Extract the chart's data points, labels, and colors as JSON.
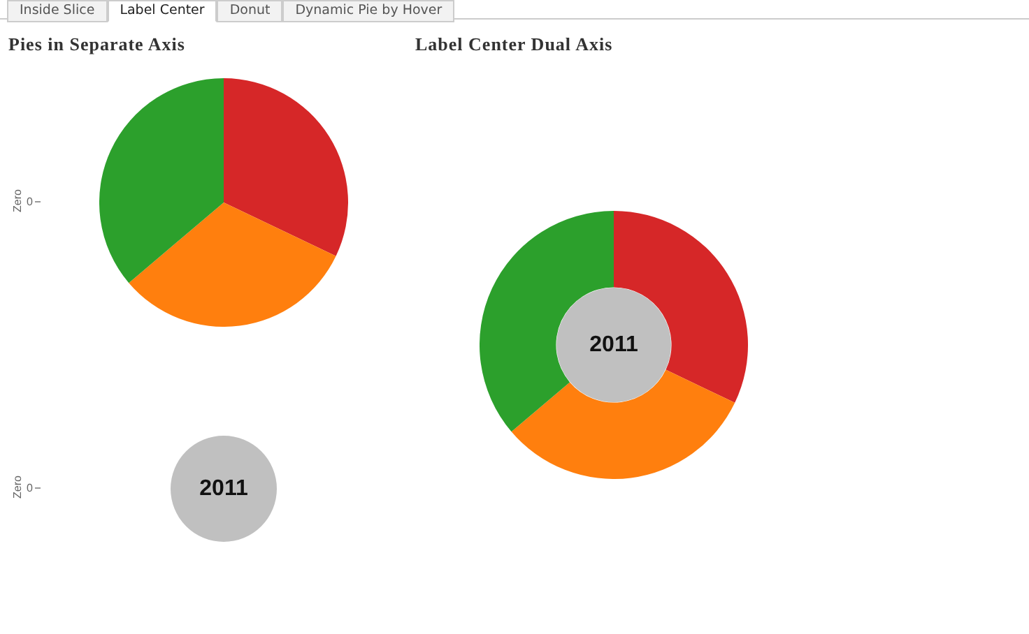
{
  "chart_data": [
    {
      "type": "other",
      "annotations": [
        "Inside Slice",
        "Label Center",
        "Donut",
        "Dynamic Pie by Hover"
      ]
    },
    {
      "type": "pie",
      "title": "Pies in Separate Axis",
      "ylabel": "Zero",
      "annotations": [
        "0"
      ],
      "categories": [
        null,
        null,
        null
      ],
      "values": [
        32.1,
        31.7,
        36.2
      ],
      "colors": [
        "#d62728",
        "#ff7f0e",
        "#2ca02c"
      ]
    },
    {
      "type": "pie",
      "ylabel": "Zero",
      "annotations": [
        "0"
      ],
      "categories": [
        "2011"
      ],
      "values": [
        100
      ],
      "colors": [
        "#c0c0c0"
      ]
    },
    {
      "type": "donut",
      "title": "Label Center Dual Axis",
      "categories": [
        null,
        null,
        null
      ],
      "values": [
        32.1,
        31.7,
        36.2
      ],
      "colors": [
        "#d62728",
        "#ff7f0e",
        "#2ca02c"
      ]
    },
    {
      "type": "pie",
      "categories": [
        "2011"
      ],
      "values": [
        100
      ],
      "colors": [
        "#c0c0c0"
      ]
    }
  ]
}
